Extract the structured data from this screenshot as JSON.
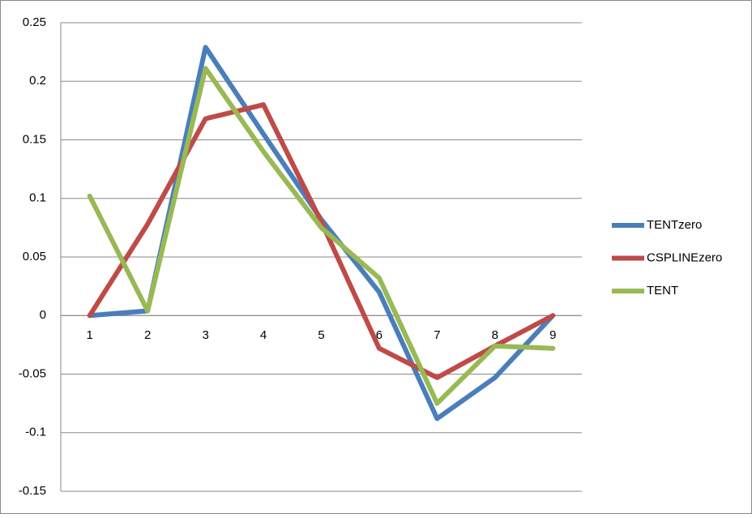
{
  "chart_data": {
    "type": "line",
    "categories": [
      1,
      2,
      3,
      4,
      5,
      6,
      7,
      8,
      9
    ],
    "series": [
      {
        "name": "TENTzero",
        "color": "#4a7ebb",
        "values": [
          0,
          0.004,
          0.229,
          0.155,
          0.082,
          0.02,
          -0.088,
          -0.053,
          0
        ]
      },
      {
        "name": "CSPLINEzero",
        "color": "#be4b48",
        "values": [
          0,
          0.078,
          0.168,
          0.18,
          0.08,
          -0.028,
          -0.053,
          -0.026,
          0
        ]
      },
      {
        "name": "TENT",
        "color": "#98b954",
        "values": [
          0.102,
          0.004,
          0.211,
          0.14,
          0.075,
          0.032,
          -0.075,
          -0.026,
          -0.028
        ]
      }
    ],
    "ylim": [
      -0.15,
      0.25
    ],
    "yticks": [
      -0.15,
      -0.1,
      -0.05,
      0,
      0.05,
      0.1,
      0.15,
      0.2,
      0.25
    ],
    "grid": true,
    "legend": "right"
  }
}
